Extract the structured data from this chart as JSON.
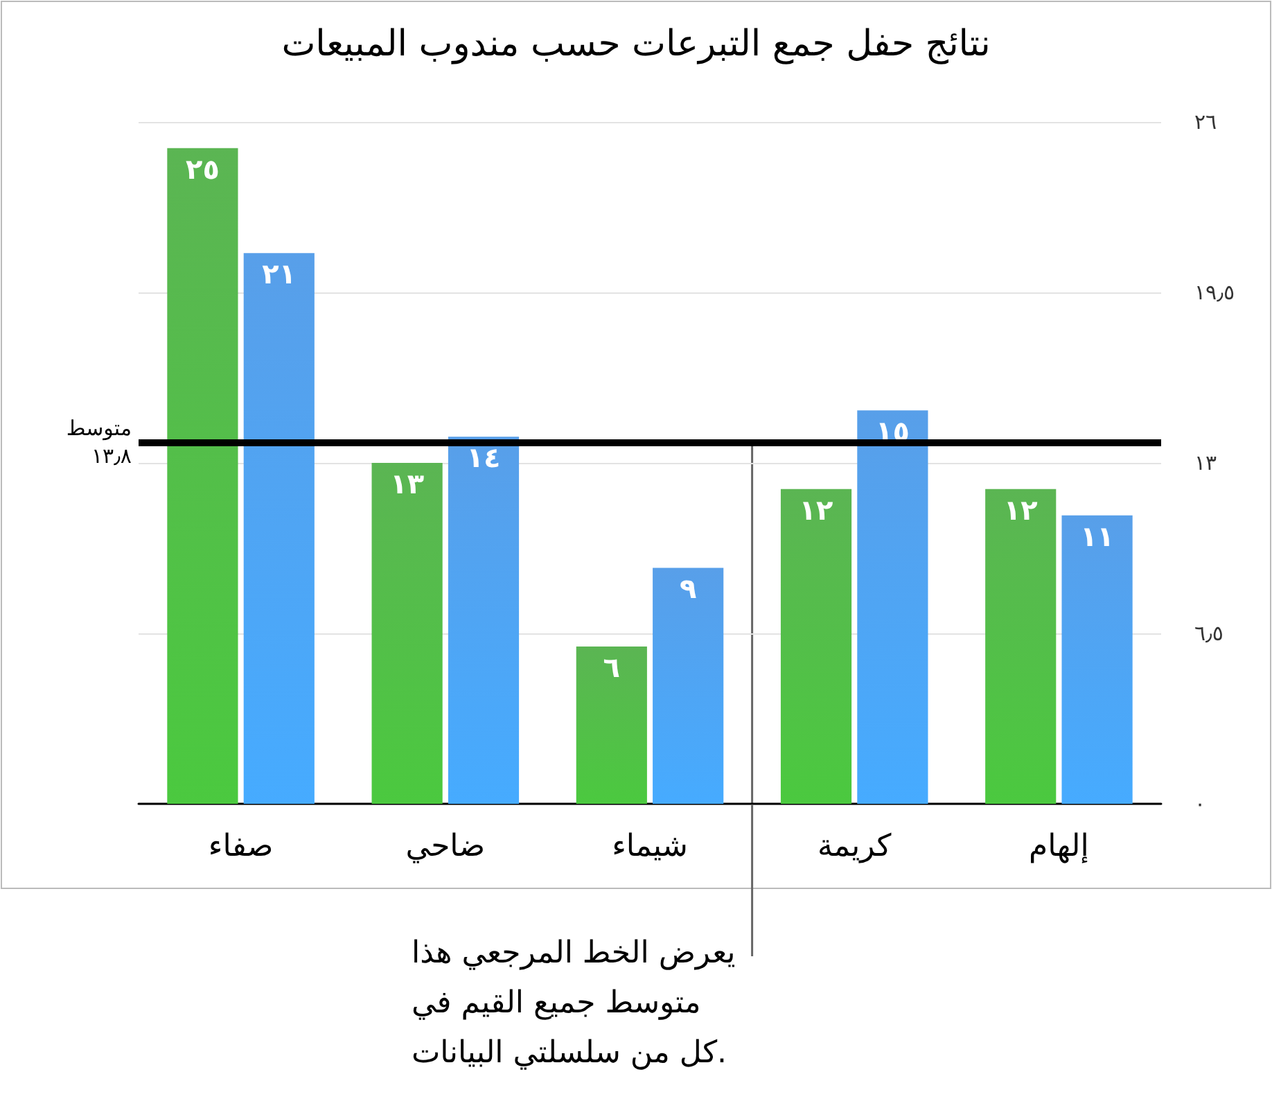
{
  "chart_data": {
    "type": "bar",
    "title": "نتائج حفل جمع التبرعات حسب مندوب المبيعات",
    "categories": [
      "صفاء",
      "ضاحي",
      "شيماء",
      "كريمة",
      "إلهام"
    ],
    "series": [
      {
        "color": "#3fa835",
        "values": [
          25,
          13,
          6,
          12,
          12
        ],
        "value_labels": [
          "٢٥",
          "١٣",
          "٦",
          "١٢",
          "١٢"
        ]
      },
      {
        "color": "#3b8fe6",
        "values": [
          21,
          14,
          9,
          15,
          11
        ],
        "value_labels": [
          "٢١",
          "١٤",
          "٩",
          "١٥",
          "١١"
        ]
      }
    ],
    "ylim": [
      0,
      26
    ],
    "yticks": [
      {
        "value": 0,
        "label": "٠"
      },
      {
        "value": 6.5,
        "label": "٦٫٥"
      },
      {
        "value": 13,
        "label": "١٣"
      },
      {
        "value": 19.5,
        "label": "١٩٫٥"
      },
      {
        "value": 26,
        "label": "٢٦"
      }
    ],
    "grid": "y",
    "ref_lines": [
      {
        "axis": "y",
        "value": 13.8,
        "label": "متوسط\n١٣٫٨",
        "color": "#000000"
      }
    ],
    "annotations": [
      "يعرض الخط المرجعي هذا\nمتوسط جميع القيم في\nكل من سلسلتي البيانات."
    ]
  }
}
